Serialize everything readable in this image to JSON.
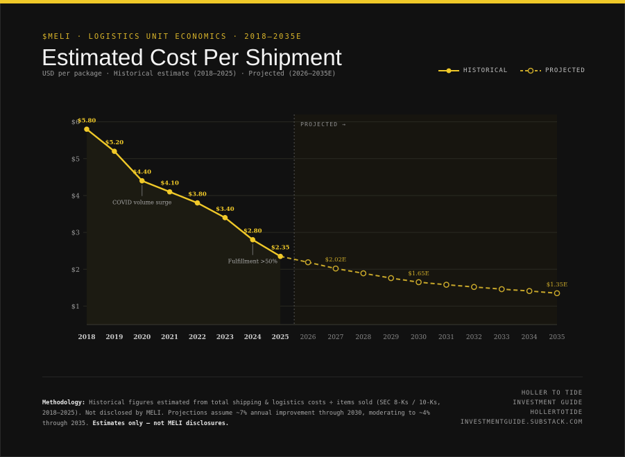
{
  "header": {
    "eyebrow": "$MELI · LOGISTICS UNIT ECONOMICS · 2018–2035E",
    "title": "Estimated Cost Per Shipment",
    "subtitle": "USD per package · Historical estimate (2018–2025) · Projected (2026–2035E)"
  },
  "legend": {
    "historical": "HISTORICAL",
    "projected": "PROJECTED"
  },
  "colors": {
    "accent": "#f0c929",
    "projected": "#c9a82a",
    "background": "#111111"
  },
  "chart_data": {
    "type": "line",
    "ylim": [
      0.5,
      6.2
    ],
    "yticks": [
      1,
      2,
      3,
      4,
      5,
      6
    ],
    "ytick_labels": [
      "$1",
      "$2",
      "$3",
      "$4",
      "$5",
      "$6"
    ],
    "x": [
      2018,
      2019,
      2020,
      2021,
      2022,
      2023,
      2024,
      2025,
      2026,
      2027,
      2028,
      2029,
      2030,
      2031,
      2032,
      2033,
      2034,
      2035
    ],
    "projected_region_label": "PROJECTED →",
    "series": [
      {
        "name": "HISTORICAL",
        "style": "solid",
        "x": [
          2018,
          2019,
          2020,
          2021,
          2022,
          2023,
          2024,
          2025
        ],
        "values": [
          5.8,
          5.2,
          4.4,
          4.1,
          3.8,
          3.4,
          2.8,
          2.35
        ],
        "labels": [
          "$5.80",
          "$5.20",
          "$4.40",
          "$4.10",
          "$3.80",
          "$3.40",
          "$2.80",
          "$2.35"
        ]
      },
      {
        "name": "PROJECTED",
        "style": "dashed",
        "x": [
          2025,
          2026,
          2027,
          2028,
          2029,
          2030,
          2031,
          2032,
          2033,
          2034,
          2035
        ],
        "values": [
          2.35,
          2.19,
          2.02,
          1.89,
          1.76,
          1.65,
          1.58,
          1.52,
          1.46,
          1.41,
          1.35
        ],
        "labels": [
          "",
          "",
          "$2.02E",
          "",
          "",
          "$1.65E",
          "",
          "",
          "",
          "",
          "$1.35E"
        ]
      }
    ],
    "annotations": [
      {
        "x": 2020,
        "value": 4.4,
        "text": "COVID volume surge"
      },
      {
        "x": 2024,
        "value": 2.8,
        "text": "Fulfillment >50%"
      }
    ]
  },
  "footer": {
    "methodology_label": "Methodology:",
    "methodology_text": " Historical figures estimated from total shipping & logistics costs ÷ items sold (SEC 8-Ks / 10-Ks, 2018–2025). Not disclosed by MELI. Projections assume ~7% annual improvement through 2030, moderating to ~4% through 2035. ",
    "methodology_strong": "Estimates only — not MELI disclosures.",
    "brand_lines": [
      "HOLLER TO TIDE",
      "INVESTMENT GUIDE",
      "HOLLERTOTIDE",
      "INVESTMENTGUIDE.SUBSTACK.COM"
    ]
  }
}
